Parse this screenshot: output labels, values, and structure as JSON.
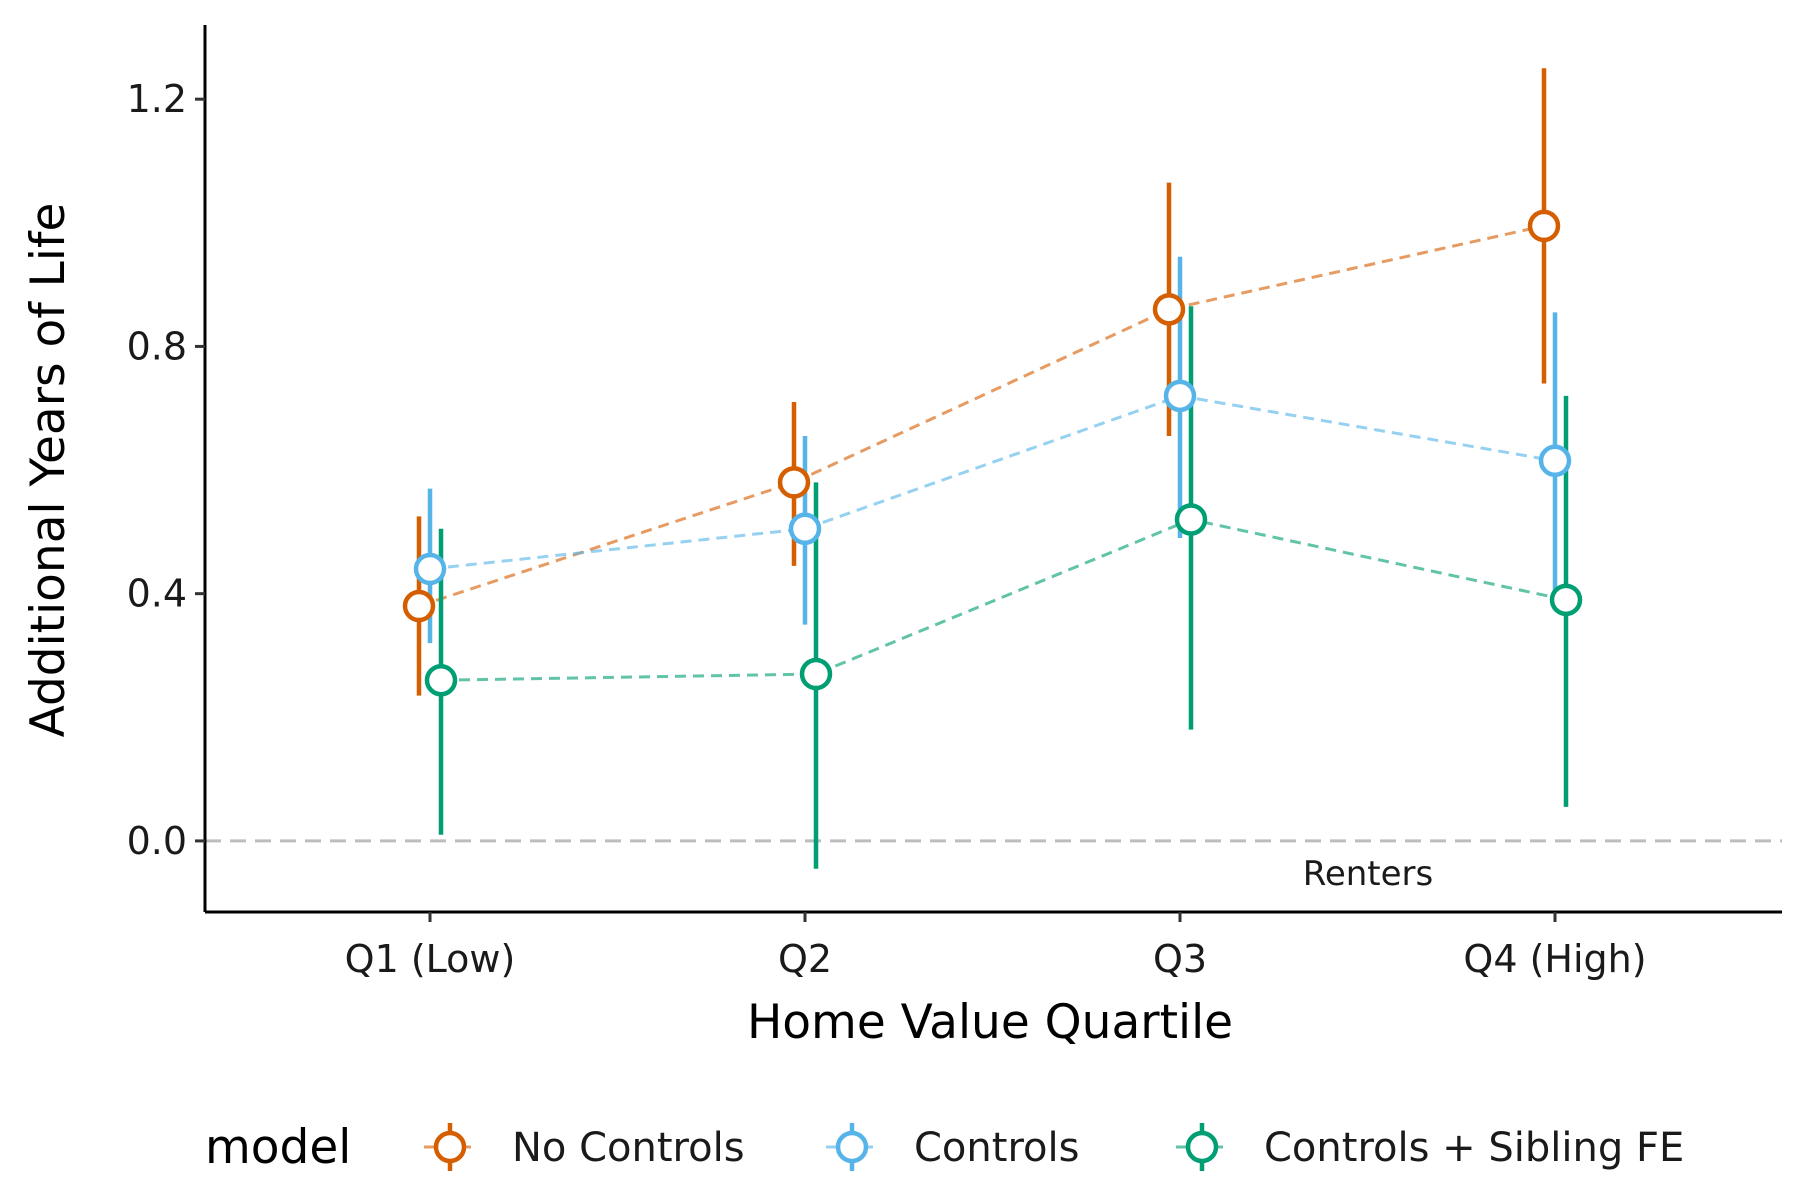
{
  "chart_data": {
    "type": "scatter",
    "xlabel": "Home Value Quartile",
    "ylabel": "Additional Years of Life",
    "categories": [
      "Q1 (Low)",
      "Q2",
      "Q3",
      "Q4 (High)"
    ],
    "ylim": [
      -0.115,
      1.32
    ],
    "yticks": [
      0.0,
      0.4,
      0.8,
      1.2
    ],
    "ytick_labels": [
      "0.0",
      "0.4",
      "0.8",
      "1.2"
    ],
    "reference_line": 0.0,
    "annotation": "Renters",
    "grid": false,
    "legend": {
      "title": "model",
      "position": "bottom"
    },
    "series": [
      {
        "name": "No Controls",
        "color": "#D55E00",
        "values": [
          0.38,
          0.58,
          0.86,
          0.995
        ],
        "lower": [
          0.235,
          0.445,
          0.655,
          0.74
        ],
        "upper": [
          0.525,
          0.71,
          1.065,
          1.25
        ]
      },
      {
        "name": "Controls",
        "color": "#56B4E9",
        "values": [
          0.44,
          0.505,
          0.72,
          0.615
        ],
        "lower": [
          0.32,
          0.35,
          0.49,
          0.38
        ],
        "upper": [
          0.57,
          0.655,
          0.945,
          0.855
        ]
      },
      {
        "name": "Controls + Sibling FE",
        "color": "#009E73",
        "values": [
          0.26,
          0.27,
          0.52,
          0.39
        ],
        "lower": [
          0.01,
          -0.045,
          0.18,
          0.055
        ],
        "upper": [
          0.505,
          0.58,
          0.865,
          0.72
        ]
      }
    ]
  }
}
